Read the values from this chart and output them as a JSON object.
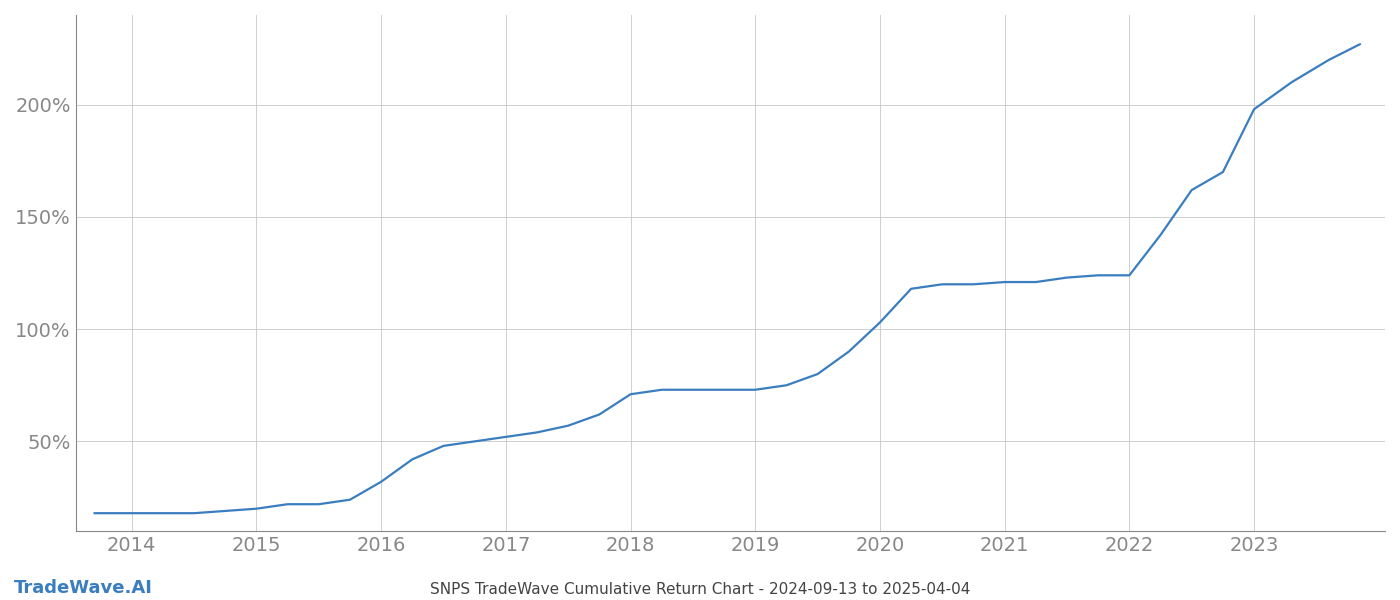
{
  "title": "SNPS TradeWave Cumulative Return Chart - 2024-09-13 to 2025-04-04",
  "watermark": "TradeWave.AI",
  "line_color": "#3a7ebf",
  "background_color": "#ffffff",
  "grid_color": "#c8c8c8",
  "x_tick_color": "#888888",
  "y_tick_color": "#888888",
  "spine_color": "#888888",
  "line_width": 1.6,
  "x_values": [
    2013.7,
    2014.0,
    2014.25,
    2014.5,
    2014.75,
    2015.0,
    2015.25,
    2015.5,
    2015.75,
    2016.0,
    2016.25,
    2016.5,
    2016.75,
    2017.0,
    2017.25,
    2017.5,
    2017.75,
    2018.0,
    2018.25,
    2018.5,
    2018.75,
    2019.0,
    2019.25,
    2019.5,
    2019.75,
    2020.0,
    2020.25,
    2020.5,
    2020.75,
    2021.0,
    2021.25,
    2021.5,
    2021.75,
    2022.0,
    2022.25,
    2022.5,
    2022.75,
    2023.0,
    2023.3,
    2023.6,
    2023.85
  ],
  "y_values": [
    18,
    18,
    18,
    18,
    19,
    20,
    22,
    22,
    24,
    32,
    42,
    48,
    50,
    52,
    54,
    57,
    62,
    71,
    73,
    73,
    73,
    73,
    75,
    80,
    90,
    103,
    118,
    120,
    120,
    121,
    121,
    123,
    124,
    124,
    142,
    162,
    170,
    198,
    210,
    220,
    227
  ],
  "xlim": [
    2013.55,
    2024.05
  ],
  "ylim": [
    10,
    240
  ],
  "yticks": [
    50,
    100,
    150,
    200
  ],
  "xticks": [
    2014,
    2015,
    2016,
    2017,
    2018,
    2019,
    2020,
    2021,
    2022,
    2023
  ],
  "title_fontsize": 11,
  "tick_fontsize": 14,
  "watermark_fontsize": 13,
  "figsize": [
    14.0,
    6.0
  ],
  "dpi": 100
}
